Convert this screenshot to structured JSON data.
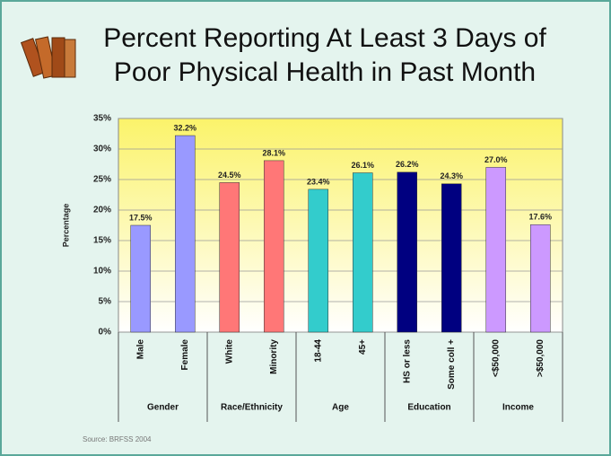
{
  "chart_data": {
    "type": "bar",
    "title": [
      "Percent Reporting At Least 3 Days of",
      "Poor Physical Health in Past Month"
    ],
    "y_label": "Percentage",
    "source": "Source: BRFSS 2004",
    "categories": [
      "Male",
      "Female",
      "White",
      "Minority",
      "18-44",
      "45+",
      "HS or less",
      "Some coll +",
      "<$50,000",
      ">$50,000"
    ],
    "category_groups": [
      "Gender",
      "Gender",
      "Race/Ethnicity",
      "Race/Ethnicity",
      "Age",
      "Age",
      "Education",
      "Education",
      "Income",
      "Income"
    ],
    "values": [
      17.5,
      32.2,
      24.5,
      28.1,
      23.4,
      26.1,
      26.2,
      24.3,
      27.0,
      17.6
    ],
    "value_labels": [
      "17.5%",
      "32.2%",
      "24.5%",
      "28.1%",
      "23.4%",
      "26.1%",
      "26.2%",
      "24.3%",
      "27.0%",
      "17.6%"
    ],
    "colors": [
      "#9999ff",
      "#9999ff",
      "#ff7777",
      "#ff7777",
      "#33cccc",
      "#33cccc",
      "#000080",
      "#000080",
      "#cc99ff",
      "#cc99ff"
    ],
    "ylim": [
      0,
      35
    ],
    "yticks": [
      {
        "value": 0,
        "label": "0%"
      },
      {
        "value": 5,
        "label": "5%"
      },
      {
        "value": 10,
        "label": "10%"
      },
      {
        "value": 15,
        "label": "15%"
      },
      {
        "value": 20,
        "label": "20%"
      },
      {
        "value": 25,
        "label": "25%"
      },
      {
        "value": 30,
        "label": "30%"
      },
      {
        "value": 35,
        "label": "35%"
      }
    ],
    "grid": true
  }
}
